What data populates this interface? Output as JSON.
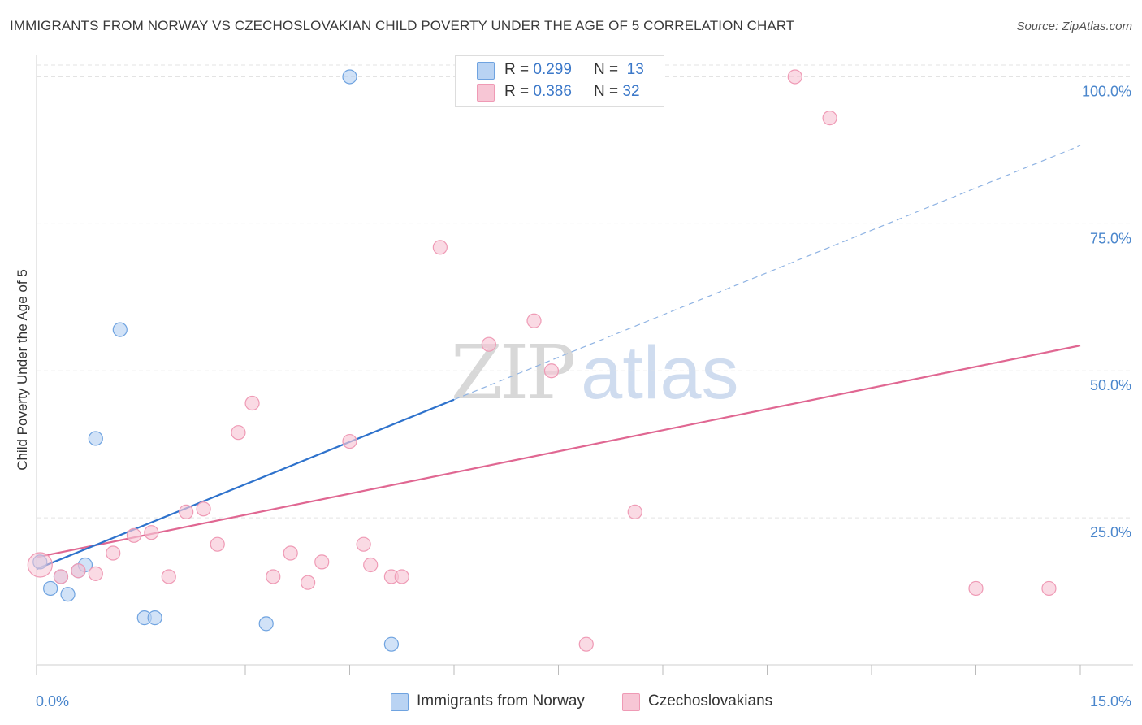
{
  "chart_data": {
    "type": "scatter",
    "title": "IMMIGRANTS FROM NORWAY VS CZECHOSLOVAKIAN CHILD POVERTY UNDER THE AGE OF 5 CORRELATION CHART",
    "source": "Source: ZipAtlas.com",
    "xlabel": "",
    "ylabel": "Child Poverty Under the Age of 5",
    "xlim": [
      0,
      15
    ],
    "ylim": [
      0,
      102
    ],
    "x_tick_labels": [
      "0.0%",
      "15.0%"
    ],
    "y_tick_labels": [
      "25.0%",
      "50.0%",
      "75.0%",
      "100.0%"
    ],
    "y_ticks": [
      25,
      50,
      75,
      100
    ],
    "grid": true,
    "legend_position": "top-center",
    "watermark": {
      "zip": "ZIP",
      "atlas": "atlas"
    },
    "series": [
      {
        "name": "Immigrants from Norway",
        "color": "#6fa3e0",
        "fill": "#b9d3f3",
        "line_color": "#2e72cc",
        "R": "0.299",
        "N": "13",
        "points": [
          [
            0.05,
            17.5
          ],
          [
            0.2,
            13.0
          ],
          [
            0.35,
            15.0
          ],
          [
            0.45,
            12.0
          ],
          [
            0.6,
            16.0
          ],
          [
            0.7,
            17.0
          ],
          [
            0.85,
            38.5
          ],
          [
            1.2,
            57.0
          ],
          [
            1.55,
            8.0
          ],
          [
            1.7,
            8.0
          ],
          [
            3.3,
            7.0
          ],
          [
            4.5,
            100.0
          ],
          [
            5.1,
            3.5
          ]
        ],
        "trend": {
          "x0": 0,
          "y0": 16.3,
          "x1": 6.0,
          "y1": 45.1,
          "dash_to_x": 15.0,
          "dash_to_y": 88.3
        }
      },
      {
        "name": "Czechoslovakians",
        "color": "#ef9ab5",
        "fill": "#f7c6d5",
        "line_color": "#e06792",
        "R": "0.386",
        "N": "32",
        "points": [
          [
            0.05,
            17.0
          ],
          [
            0.35,
            15.0
          ],
          [
            0.6,
            16.0
          ],
          [
            0.85,
            15.5
          ],
          [
            1.1,
            19.0
          ],
          [
            1.4,
            22.0
          ],
          [
            1.65,
            22.5
          ],
          [
            1.9,
            15.0
          ],
          [
            2.15,
            26.0
          ],
          [
            2.4,
            26.5
          ],
          [
            2.6,
            20.5
          ],
          [
            2.9,
            39.5
          ],
          [
            3.1,
            44.5
          ],
          [
            3.4,
            15.0
          ],
          [
            3.65,
            19.0
          ],
          [
            3.9,
            14.0
          ],
          [
            4.1,
            17.5
          ],
          [
            4.5,
            38.0
          ],
          [
            4.7,
            20.5
          ],
          [
            4.8,
            17.0
          ],
          [
            5.1,
            15.0
          ],
          [
            5.25,
            15.0
          ],
          [
            5.8,
            71.0
          ],
          [
            6.5,
            54.5
          ],
          [
            7.15,
            58.5
          ],
          [
            7.4,
            50.0
          ],
          [
            7.9,
            3.5
          ],
          [
            8.6,
            26.0
          ],
          [
            10.9,
            100.0
          ],
          [
            11.4,
            93.0
          ],
          [
            13.5,
            13.0
          ],
          [
            14.55,
            13.0
          ]
        ],
        "trend": {
          "x0": 0,
          "y0": 18.3,
          "x1": 15.0,
          "y1": 54.3
        }
      }
    ]
  }
}
